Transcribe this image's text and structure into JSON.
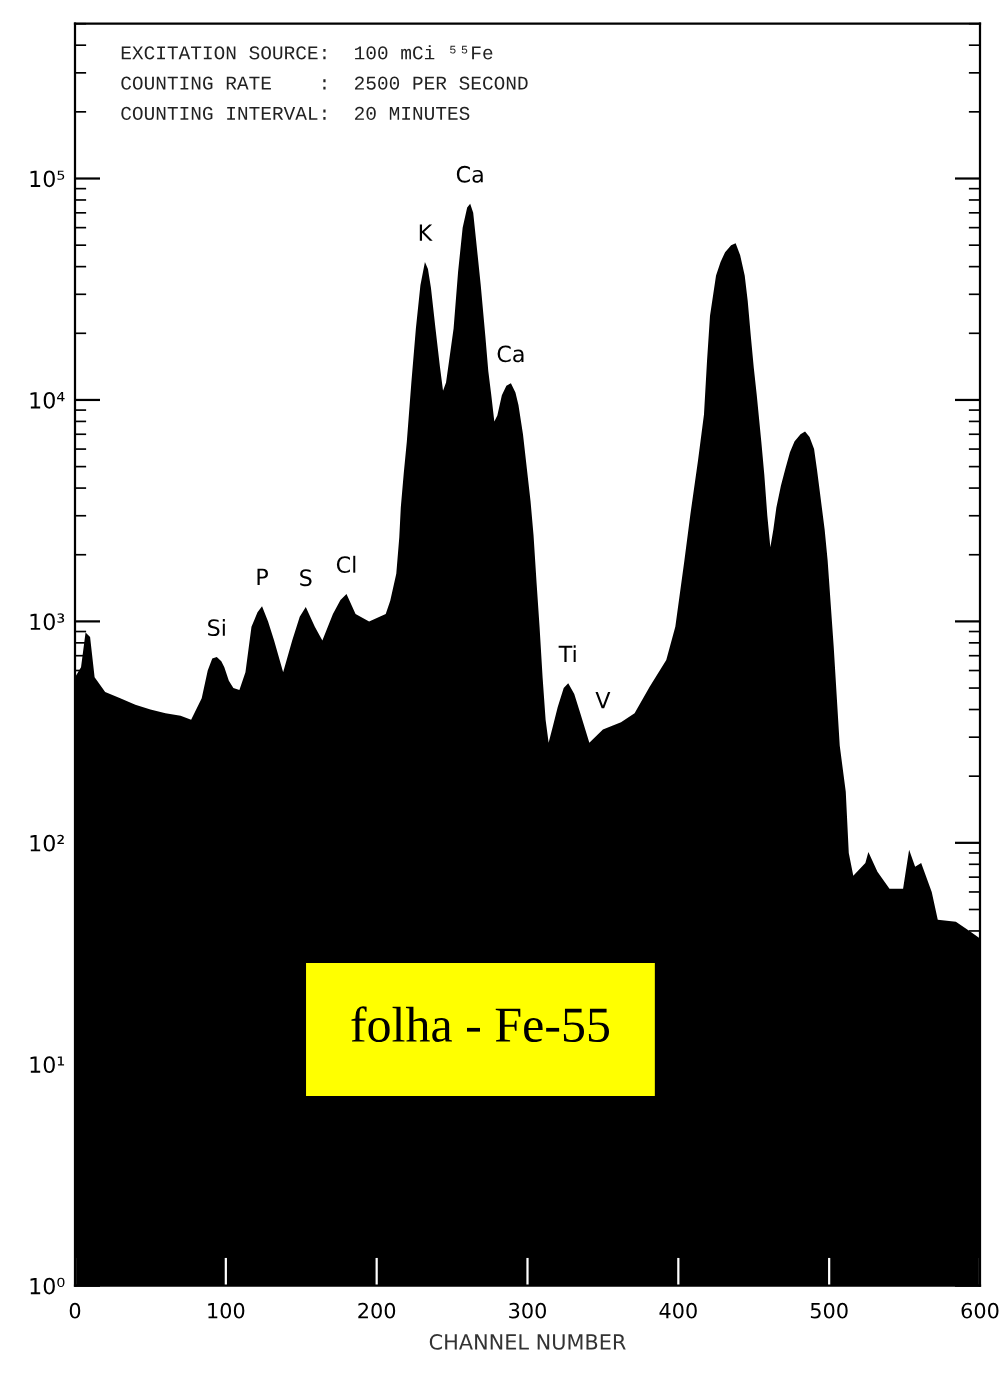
{
  "chart_data": {
    "type": "area",
    "title": "folha - Fe-55",
    "xlabel": "CHANNEL NUMBER",
    "color": "#000000",
    "log": true,
    "annotations": [
      "EXCITATION SOURCE:  100 mCi ⁵⁵Fe",
      "COUNTING RATE    :  2500 PER SECOND",
      "COUNTING INTERVAL:  20 MINUTES",
      {
        "text": "Si",
        "x": 94,
        "y": 690
      },
      {
        "text": "P",
        "x": 124,
        "y": 1170
      },
      {
        "text": "S",
        "x": 153,
        "y": 1160
      },
      {
        "text": "Cl",
        "x": 180,
        "y": 1330
      },
      {
        "text": "K",
        "x": 232,
        "y": 42000
      },
      {
        "text": "Ca",
        "x": 262,
        "y": 77000
      },
      {
        "text": "Ca",
        "x": 289,
        "y": 11900
      },
      {
        "text": "Ti",
        "x": 327,
        "y": 525
      },
      {
        "text": "V",
        "x": 350,
        "y": 325
      }
    ],
    "x": [
      0,
      4,
      7,
      10,
      13,
      20,
      30,
      40,
      50,
      60,
      70,
      77,
      84,
      88,
      91,
      94,
      97,
      99,
      102,
      105,
      109,
      113,
      117,
      121,
      124,
      128,
      132,
      138,
      144,
      149,
      153,
      159,
      164,
      171,
      176,
      180,
      186,
      195,
      206,
      209,
      213,
      215,
      216,
      218,
      220,
      223,
      226,
      229,
      232,
      234,
      236,
      239,
      242,
      244,
      246,
      248,
      251,
      254,
      257,
      260,
      262,
      264,
      266,
      269,
      272,
      274,
      276,
      278,
      280,
      283,
      286,
      289,
      292,
      294,
      297,
      299,
      302,
      304,
      306,
      308,
      310,
      312,
      314,
      317,
      320,
      324,
      327,
      331,
      335,
      341,
      350,
      362,
      371,
      381,
      392,
      398,
      404,
      408,
      413,
      417,
      419,
      421,
      425,
      428,
      431,
      435,
      438,
      441,
      444,
      446,
      448,
      450,
      452,
      455,
      457,
      459,
      461,
      463,
      465,
      468,
      471,
      474,
      477,
      481,
      484,
      487,
      490,
      492,
      494,
      497,
      499,
      503,
      507,
      511,
      513,
      516,
      524,
      526,
      532,
      540,
      549,
      553,
      557,
      561,
      568,
      572,
      584,
      593,
      600
    ],
    "values": [
      560,
      620,
      890,
      850,
      560,
      480,
      450,
      420,
      400,
      385,
      375,
      360,
      450,
      600,
      680,
      690,
      660,
      620,
      540,
      500,
      490,
      590,
      945,
      1100,
      1170,
      1000,
      820,
      590,
      820,
      1050,
      1160,
      945,
      820,
      1080,
      1250,
      1330,
      1080,
      1000,
      1080,
      1240,
      1640,
      2400,
      3270,
      4700,
      6500,
      12000,
      21000,
      33000,
      42000,
      39000,
      32000,
      21000,
      14000,
      11000,
      12000,
      15000,
      21000,
      38000,
      60000,
      74000,
      77000,
      70000,
      52000,
      33000,
      19600,
      13500,
      10500,
      8000,
      8500,
      10500,
      11600,
      11900,
      10800,
      9500,
      7000,
      5300,
      3500,
      2450,
      1500,
      944,
      560,
      360,
      283,
      340,
      410,
      500,
      525,
      470,
      385,
      283,
      325,
      350,
      385,
      507,
      670,
      945,
      1880,
      3050,
      5300,
      8600,
      14900,
      24000,
      36500,
      42000,
      46500,
      50000,
      51000,
      45000,
      36500,
      28000,
      19600,
      14000,
      10500,
      6500,
      4600,
      3000,
      2160,
      2600,
      3270,
      4100,
      4900,
      5800,
      6500,
      7000,
      7200,
      6800,
      6000,
      4800,
      3760,
      2600,
      1880,
      770,
      275,
      170,
      90,
      71,
      81,
      91,
      74,
      62,
      62,
      93,
      78,
      81,
      60,
      45,
      44,
      40,
      37
    ],
    "xlim": [
      0,
      600
    ],
    "xticks": [
      0,
      100,
      200,
      300,
      400,
      500,
      600
    ],
    "ylim": [
      1,
      500000
    ],
    "yticks": [
      {
        "value": 1,
        "label": "10⁰"
      },
      {
        "value": 10,
        "label": "10¹"
      },
      {
        "value": 100,
        "label": "10²"
      },
      {
        "value": 1000,
        "label": "10³"
      },
      {
        "value": 10000,
        "label": "10⁴"
      },
      {
        "value": 100000,
        "label": "10⁵"
      }
    ]
  }
}
